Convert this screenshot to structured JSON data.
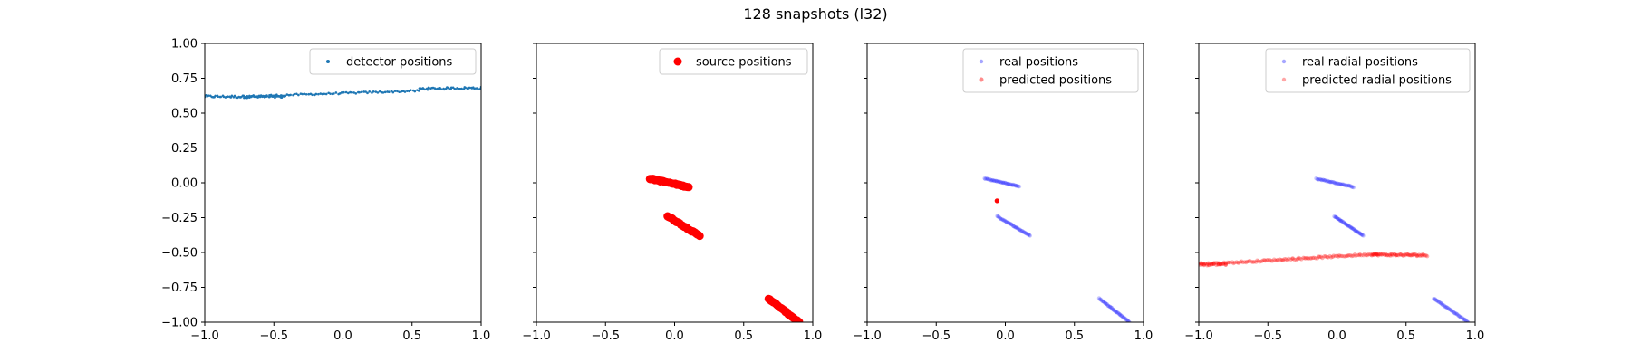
{
  "figure": {
    "title": "128 snapshots (l32)"
  },
  "chart_data": [
    {
      "type": "scatter",
      "xlim": [
        -1.0,
        1.0
      ],
      "ylim": [
        -1.0,
        1.0
      ],
      "xticks": [
        "−1.0",
        "−0.5",
        "0.0",
        "0.5",
        "1.0"
      ],
      "yticks": [
        "1.00",
        "0.75",
        "0.50",
        "0.25",
        "0.00",
        "−0.25",
        "−0.50",
        "−0.75",
        "−1.00"
      ],
      "show_yticklabels": true,
      "legend_position": "top-right",
      "series": [
        {
          "name": "detector positions",
          "color": "#1f77b4",
          "marker_size": 1.3,
          "opacity": 1.0,
          "segments": [
            {
              "x0": -1.0,
              "y0": 0.62,
              "x1": -0.42,
              "y1": 0.615,
              "n": 60,
              "jitter": 0.008
            },
            {
              "x0": -0.72,
              "y0": 0.62,
              "x1": 0.55,
              "y1": 0.66,
              "n": 90,
              "jitter": 0.006
            },
            {
              "x0": 0.55,
              "y0": 0.675,
              "x1": 1.0,
              "y1": 0.68,
              "n": 50,
              "jitter": 0.008
            }
          ]
        }
      ]
    },
    {
      "type": "scatter",
      "xlim": [
        -1.0,
        1.0
      ],
      "ylim": [
        -1.0,
        1.0
      ],
      "xticks": [
        "−1.0",
        "−0.5",
        "0.0",
        "0.5",
        "1.0"
      ],
      "yticks": [],
      "show_yticklabels": false,
      "legend_position": "top-right",
      "series": [
        {
          "name": "source positions",
          "color": "#ff0000",
          "marker_size": 4.5,
          "opacity": 1.0,
          "segments": [
            {
              "x0": -0.18,
              "y0": 0.03,
              "x1": 0.1,
              "y1": -0.03,
              "n": 30,
              "jitter": 0.004
            },
            {
              "x0": -0.05,
              "y0": -0.24,
              "x1": 0.18,
              "y1": -0.38,
              "n": 30,
              "jitter": 0.004
            },
            {
              "x0": 0.68,
              "y0": -0.83,
              "x1": 0.9,
              "y1": -1.0,
              "n": 30,
              "jitter": 0.004
            }
          ]
        }
      ]
    },
    {
      "type": "scatter",
      "xlim": [
        -1.0,
        1.0
      ],
      "ylim": [
        -1.0,
        1.0
      ],
      "xticks": [
        "−1.0",
        "−0.5",
        "0.0",
        "0.5",
        "1.0"
      ],
      "yticks": [],
      "show_yticklabels": false,
      "legend_position": "top-right",
      "series": [
        {
          "name": "real positions",
          "color": "#0000ff",
          "marker_size": 2.2,
          "opacity": 0.22,
          "segments": [
            {
              "x0": -0.15,
              "y0": 0.03,
              "x1": 0.1,
              "y1": -0.025,
              "n": 40,
              "jitter": 0.003
            },
            {
              "x0": -0.06,
              "y0": -0.24,
              "x1": 0.18,
              "y1": -0.38,
              "n": 40,
              "jitter": 0.003
            },
            {
              "x0": 0.68,
              "y0": -0.83,
              "x1": 0.9,
              "y1": -1.0,
              "n": 40,
              "jitter": 0.003
            }
          ]
        },
        {
          "name": "predicted positions",
          "color": "#ff0000",
          "marker_size": 2.5,
          "opacity": 0.45,
          "segments": [
            {
              "x0": -0.06,
              "y0": -0.13,
              "x1": -0.06,
              "y1": -0.13,
              "n": 6,
              "jitter": 0.002
            }
          ]
        }
      ]
    },
    {
      "type": "scatter",
      "xlim": [
        -1.0,
        1.0
      ],
      "ylim": [
        -1.0,
        1.0
      ],
      "xticks": [
        "−1.0",
        "−0.5",
        "0.0",
        "0.5",
        "1.0"
      ],
      "yticks": [],
      "show_yticklabels": false,
      "legend_position": "top-right",
      "series": [
        {
          "name": "real radial positions",
          "color": "#0000ff",
          "marker_size": 2.2,
          "opacity": 0.22,
          "segments": [
            {
              "x0": -0.15,
              "y0": 0.03,
              "x1": 0.12,
              "y1": -0.03,
              "n": 40,
              "jitter": 0.003
            },
            {
              "x0": -0.02,
              "y0": -0.24,
              "x1": 0.19,
              "y1": -0.38,
              "n": 40,
              "jitter": 0.003
            },
            {
              "x0": 0.7,
              "y0": -0.83,
              "x1": 0.95,
              "y1": -1.0,
              "n": 40,
              "jitter": 0.003
            }
          ]
        },
        {
          "name": "predicted radial positions",
          "color": "#ff0000",
          "marker_size": 2.2,
          "opacity": 0.3,
          "segments": [
            {
              "x0": -1.0,
              "y0": -0.585,
              "x1": -0.8,
              "y1": -0.58,
              "n": 40,
              "jitter": 0.01
            },
            {
              "x0": -0.8,
              "y0": -0.575,
              "x1": 0.3,
              "y1": -0.51,
              "n": 110,
              "jitter": 0.006
            },
            {
              "x0": 0.25,
              "y0": -0.515,
              "x1": 0.65,
              "y1": -0.52,
              "n": 60,
              "jitter": 0.007
            }
          ]
        }
      ]
    }
  ]
}
